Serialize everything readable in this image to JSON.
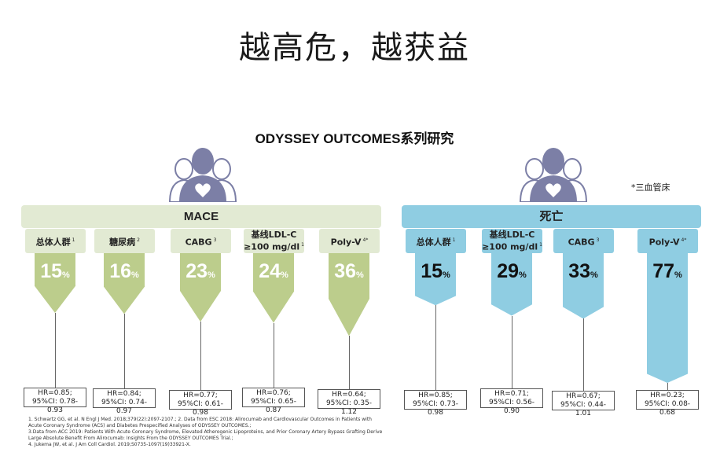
{
  "title": "越高危，越获益",
  "subtitle": "ODYSSEY OUTCOMES系列研究",
  "note": "*三血管床",
  "colors": {
    "green_light": "#e2ead3",
    "green": "#bccd8c",
    "blue": "#8fcde2"
  },
  "icons": [
    "people-heart-icon",
    "people-heart-icon"
  ],
  "groups": [
    {
      "name": "MACE",
      "items": [
        {
          "label_main": "总体人群",
          "label_line2": "",
          "sup": "1",
          "value": 15,
          "pct_text": "15",
          "unit": "%",
          "hr": "HR=0.85;",
          "ci": "95%CI: 0.78-0.93"
        },
        {
          "label_main": "糖尿病",
          "label_line2": "",
          "sup": "2",
          "value": 16,
          "pct_text": "16",
          "unit": "%",
          "hr": "HR=0.84;",
          "ci": "95%CI: 0.74-0.97"
        },
        {
          "label_main": "CABG",
          "label_line2": "",
          "sup": "3",
          "value": 23,
          "pct_text": "23",
          "unit": "%",
          "hr": "HR=0.77;",
          "ci": "95%CI: 0.61-0.98"
        },
        {
          "label_main": "基线LDL-C",
          "label_line2": "≥100 mg/dl",
          "sup": "1",
          "value": 24,
          "pct_text": "24",
          "unit": "%",
          "hr": "HR=0.76;",
          "ci": "95%CI: 0.65-0.87"
        },
        {
          "label_main": "Poly-V",
          "label_line2": "",
          "sup": "4*",
          "value": 36,
          "pct_text": "36",
          "unit": "%",
          "hr": "HR=0.64;",
          "ci": "95%CI: 0.35-1.12"
        }
      ]
    },
    {
      "name": "死亡",
      "items": [
        {
          "label_main": "总体人群",
          "label_line2": "",
          "sup": "1",
          "value": 15,
          "pct_text": "15",
          "unit": "%",
          "hr": "HR=0.85;",
          "ci": "95%CI: 0.73-0.98"
        },
        {
          "label_main": "基线LDL-C",
          "label_line2": "≥100 mg/dl",
          "sup": "1",
          "value": 29,
          "pct_text": "29",
          "unit": "%",
          "hr": "HR=0.71;",
          "ci": "95%CI: 0.56-0.90"
        },
        {
          "label_main": "CABG",
          "label_line2": "",
          "sup": "3",
          "value": 33,
          "pct_text": "33",
          "unit": "%",
          "hr": "HR=0.67;",
          "ci": "95%CI: 0.44-1.01"
        },
        {
          "label_main": "Poly-V",
          "label_line2": "",
          "sup": "4*",
          "value": 77,
          "pct_text": "77",
          "unit": "%",
          "hr": "HR=0.23;",
          "ci": "95%CI: 0.08-0.68"
        }
      ]
    }
  ],
  "references": [
    "1. Schwartz GG, et al. N Engl J Med. 2018;379(22):2097-2107.; 2. Data from ESC 2018: Alirocumab and Cardiovascular Outcomes in Patients with",
    "Acute Coronary Syndrome (ACS) and Diabetes Prespecified Analyses of ODYSSEY OUTCOMES.;",
    "3.Data from ACC 2019: Patients With Acute Coronary Syndrome, Elevated Atherogenic Lipoproteins, and Prior Coronary Artery Bypass Grafting Derive",
    "Large Absolute Benefit From Alirocumab: Insights From the ODYSSEY OUTCOMES Trial.;",
    "4. Jukema JW, et al. J Am Coll Cardiol. 2019;S0735-1097(19)33921-X."
  ]
}
